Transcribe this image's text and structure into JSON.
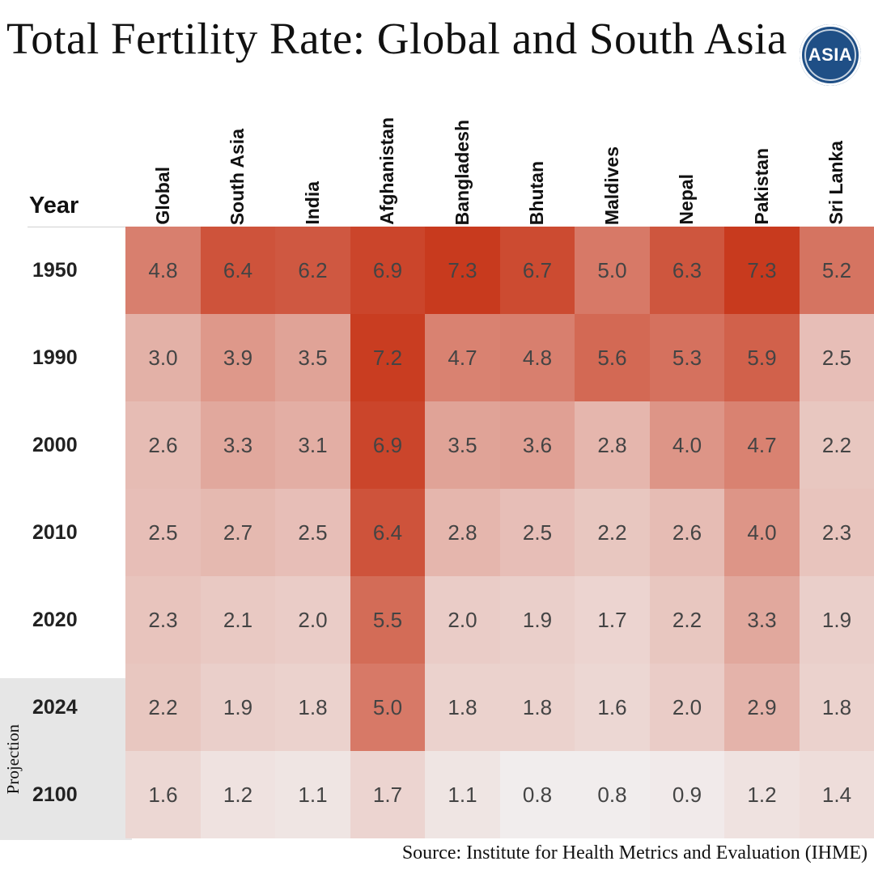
{
  "title": "Total Fertility Rate: Global and South Asia",
  "logo_text": "ASIA",
  "source": "Source: Institute for Health Metrics and Evaluation (IHME)",
  "projection_label": "Projection",
  "colors": {
    "low": "#f2f0f0",
    "high": "#c83a1e"
  },
  "chart_data": {
    "type": "heatmap",
    "title": "Total Fertility Rate: Global and South Asia",
    "row_header": "Year",
    "columns": [
      "Global",
      "South Asia",
      "India",
      "Afghanistan",
      "Bangladesh",
      "Bhutan",
      "Maldives",
      "Nepal",
      "Pakistan",
      "Sri Lanka"
    ],
    "rows": [
      "1950",
      "1990",
      "2000",
      "2010",
      "2020",
      "2024",
      "2100"
    ],
    "projection_rows": [
      "2024",
      "2100"
    ],
    "values": [
      [
        "4.8",
        "6.4",
        "6.2",
        "6.9",
        "7.3",
        "6.7",
        "5.0",
        "6.3",
        "7.3",
        "5.2"
      ],
      [
        "3.0",
        "3.9",
        "3.5",
        "7.2",
        "4.7",
        "4.8",
        "5.6",
        "5.3",
        "5.9",
        "2.5"
      ],
      [
        "2.6",
        "3.3",
        "3.1",
        "6.9",
        "3.5",
        "3.6",
        "2.8",
        "4.0",
        "4.7",
        "2.2"
      ],
      [
        "2.5",
        "2.7",
        "2.5",
        "6.4",
        "2.8",
        "2.5",
        "2.2",
        "2.6",
        "4.0",
        "2.3"
      ],
      [
        "2.3",
        "2.1",
        "2.0",
        "5.5",
        "2.0",
        "1.9",
        "1.7",
        "2.2",
        "3.3",
        "1.9"
      ],
      [
        "2.2",
        "1.9",
        "1.8",
        "5.0",
        "1.8",
        "1.8",
        "1.6",
        "2.0",
        "2.9",
        "1.8"
      ],
      [
        "1.6",
        "1.2",
        "1.1",
        "1.7",
        "1.1",
        "0.8",
        "0.8",
        "0.9",
        "1.2",
        "1.4"
      ]
    ]
  }
}
